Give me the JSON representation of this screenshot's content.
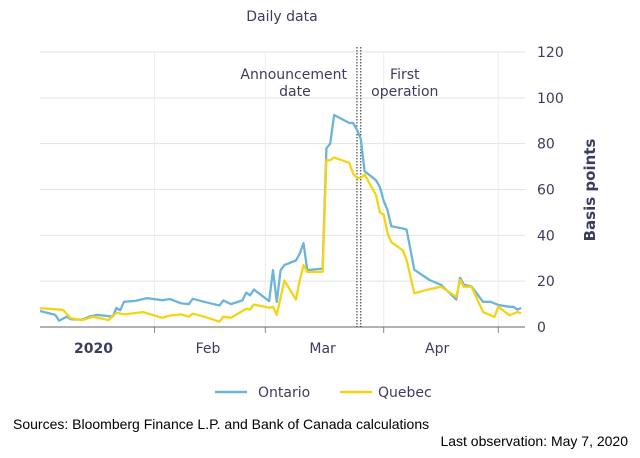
{
  "chart_data": {
    "type": "line",
    "title": "Daily data",
    "ylabel": "Basis points",
    "xlabel": "",
    "ylim": [
      0,
      120
    ],
    "yticks": [
      0,
      20,
      40,
      60,
      80,
      100,
      120
    ],
    "xlim": [
      "2020-01-02",
      "2020-05-08"
    ],
    "xticks": [
      {
        "label": "2020",
        "date": "2020-01-16",
        "bold": true
      },
      {
        "label": "Feb",
        "date": "2020-02-15",
        "bold": false
      },
      {
        "label": "Mar",
        "date": "2020-03-16",
        "bold": false
      },
      {
        "label": "Apr",
        "date": "2020-04-15",
        "bold": false
      }
    ],
    "month_boundaries": [
      "2020-02-01",
      "2020-03-01",
      "2020-04-01",
      "2020-05-01"
    ],
    "grid": true,
    "legend_position": "bottom",
    "markers": [
      {
        "label_lines": [
          "Announcement",
          "date"
        ],
        "date": "2020-03-25"
      },
      {
        "label_lines": [
          "First",
          "operation"
        ],
        "date": "2020-03-26"
      }
    ],
    "series": [
      {
        "name": "Ontario",
        "color": "#6cb4d8",
        "points": [
          [
            "2020-01-02",
            7
          ],
          [
            "2020-01-06",
            5.3
          ],
          [
            "2020-01-07",
            2.7
          ],
          [
            "2020-01-09",
            4.5
          ],
          [
            "2020-01-10",
            3.4
          ],
          [
            "2020-01-13",
            3.2
          ],
          [
            "2020-01-15",
            4.6
          ],
          [
            "2020-01-17",
            5.3
          ],
          [
            "2020-01-21",
            4.5
          ],
          [
            "2020-01-22",
            8.3
          ],
          [
            "2020-01-23",
            7.3
          ],
          [
            "2020-01-24",
            11
          ],
          [
            "2020-01-27",
            11.4
          ],
          [
            "2020-01-30",
            12.6
          ],
          [
            "2020-02-03",
            11.7
          ],
          [
            "2020-02-05",
            12.2
          ],
          [
            "2020-02-08",
            10.3
          ],
          [
            "2020-02-10",
            10
          ],
          [
            "2020-02-11",
            12.3
          ],
          [
            "2020-02-14",
            11
          ],
          [
            "2020-02-18",
            9.4
          ],
          [
            "2020-02-19",
            11.6
          ],
          [
            "2020-02-21",
            10
          ],
          [
            "2020-02-24",
            11.6
          ],
          [
            "2020-02-25",
            15
          ],
          [
            "2020-02-26",
            13.8
          ],
          [
            "2020-02-27",
            16.3
          ],
          [
            "2020-03-02",
            11.3
          ],
          [
            "2020-03-03",
            24.8
          ],
          [
            "2020-03-04",
            11
          ],
          [
            "2020-03-05",
            24.8
          ],
          [
            "2020-03-06",
            27
          ],
          [
            "2020-03-09",
            29
          ],
          [
            "2020-03-10",
            32
          ],
          [
            "2020-03-11",
            36.6
          ],
          [
            "2020-03-12",
            24.8
          ],
          [
            "2020-03-16",
            25.5
          ],
          [
            "2020-03-17",
            78
          ],
          [
            "2020-03-18",
            80
          ],
          [
            "2020-03-19",
            92.5
          ],
          [
            "2020-03-23",
            89
          ],
          [
            "2020-03-24",
            89
          ],
          [
            "2020-03-25",
            86
          ],
          [
            "2020-03-26",
            82
          ],
          [
            "2020-03-27",
            68
          ],
          [
            "2020-03-30",
            64
          ],
          [
            "2020-03-31",
            61
          ],
          [
            "2020-04-01",
            55
          ],
          [
            "2020-04-02",
            51
          ],
          [
            "2020-04-03",
            44
          ],
          [
            "2020-04-06",
            43
          ],
          [
            "2020-04-07",
            42.5
          ],
          [
            "2020-04-09",
            25
          ],
          [
            "2020-04-13",
            20.5
          ],
          [
            "2020-04-16",
            18.4
          ],
          [
            "2020-04-20",
            12
          ],
          [
            "2020-04-21",
            21.5
          ],
          [
            "2020-04-22",
            18.4
          ],
          [
            "2020-04-24",
            17.7
          ],
          [
            "2020-04-27",
            11
          ],
          [
            "2020-04-29",
            11
          ],
          [
            "2020-05-01",
            9.6
          ],
          [
            "2020-05-04",
            8.8
          ],
          [
            "2020-05-05",
            8.8
          ],
          [
            "2020-05-06",
            7.6
          ],
          [
            "2020-05-07",
            8.3
          ]
        ]
      },
      {
        "name": "Quebec",
        "color": "#f5d416",
        "points": [
          [
            "2020-01-02",
            8.2
          ],
          [
            "2020-01-08",
            7.5
          ],
          [
            "2020-01-10",
            3.9
          ],
          [
            "2020-01-13",
            3
          ],
          [
            "2020-01-16",
            4.5
          ],
          [
            "2020-01-20",
            3
          ],
          [
            "2020-01-22",
            6.2
          ],
          [
            "2020-01-24",
            5.5
          ],
          [
            "2020-01-29",
            6.5
          ],
          [
            "2020-02-03",
            4
          ],
          [
            "2020-02-05",
            5
          ],
          [
            "2020-02-08",
            5.5
          ],
          [
            "2020-02-10",
            4.5
          ],
          [
            "2020-02-11",
            5.8
          ],
          [
            "2020-02-14",
            4.5
          ],
          [
            "2020-02-18",
            2.3
          ],
          [
            "2020-02-19",
            4.5
          ],
          [
            "2020-02-21",
            4
          ],
          [
            "2020-02-25",
            8
          ],
          [
            "2020-02-26",
            7.6
          ],
          [
            "2020-02-27",
            9.8
          ],
          [
            "2020-03-02",
            8.4
          ],
          [
            "2020-03-03",
            8.8
          ],
          [
            "2020-03-04",
            5.3
          ],
          [
            "2020-03-06",
            20.3
          ],
          [
            "2020-03-09",
            12
          ],
          [
            "2020-03-10",
            20.3
          ],
          [
            "2020-03-11",
            27
          ],
          [
            "2020-03-12",
            24
          ],
          [
            "2020-03-16",
            24
          ],
          [
            "2020-03-17",
            72.8
          ],
          [
            "2020-03-18",
            72.8
          ],
          [
            "2020-03-19",
            74
          ],
          [
            "2020-03-23",
            71.6
          ],
          [
            "2020-03-24",
            67
          ],
          [
            "2020-03-25",
            65
          ],
          [
            "2020-03-26",
            65
          ],
          [
            "2020-03-27",
            66.6
          ],
          [
            "2020-03-30",
            57.5
          ],
          [
            "2020-03-31",
            50
          ],
          [
            "2020-04-01",
            49
          ],
          [
            "2020-04-02",
            41
          ],
          [
            "2020-04-03",
            37
          ],
          [
            "2020-04-06",
            33.5
          ],
          [
            "2020-04-07",
            29.3
          ],
          [
            "2020-04-09",
            14.7
          ],
          [
            "2020-04-13",
            16.5
          ],
          [
            "2020-04-16",
            17.6
          ],
          [
            "2020-04-20",
            13.2
          ],
          [
            "2020-04-21",
            20.5
          ],
          [
            "2020-04-22",
            17.6
          ],
          [
            "2020-04-24",
            17.6
          ],
          [
            "2020-04-27",
            6.6
          ],
          [
            "2020-04-30",
            4.4
          ],
          [
            "2020-05-01",
            8.8
          ],
          [
            "2020-05-04",
            5.1
          ],
          [
            "2020-05-06",
            6.6
          ],
          [
            "2020-05-07",
            5.9
          ]
        ]
      }
    ]
  },
  "footer": {
    "sources": "Sources: Bloomberg Finance L.P. and Bank of Canada calculations",
    "last_observation": "Last observation: May 7, 2020"
  }
}
